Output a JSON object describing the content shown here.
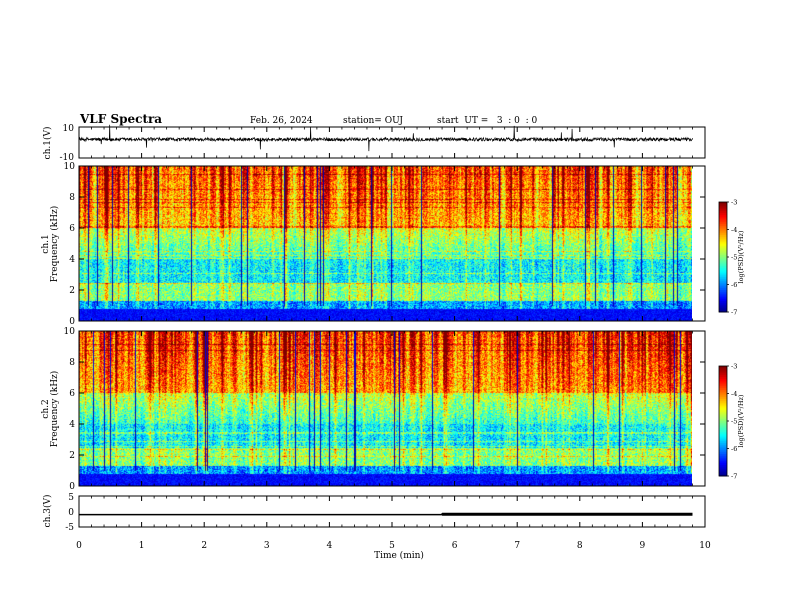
{
  "header": {
    "title": "VLF Spectra",
    "date": "Feb. 26, 2024",
    "station": "station= OUJ",
    "start": "start  UT =   3  : 0  : 0"
  },
  "colorbar": {
    "label": "log(PSD)(V²/Hz)",
    "ticks": [
      "-3",
      "-4",
      "-5",
      "-6",
      "-7"
    ],
    "range": [
      -7,
      -3
    ]
  },
  "chart_data": [
    {
      "type": "line",
      "name": "ch1-waveform",
      "ylabel": "ch.1(V)",
      "ylim": [
        -10,
        10
      ],
      "xlim": [
        0,
        10
      ],
      "yticks": [
        "10",
        "-10"
      ],
      "description_of_trace": "noisy baseline near +2 V with sparse spikes"
    },
    {
      "type": "heatmap",
      "name": "ch1-spectrogram",
      "ylabel": "ch.1\nFrequency (kHz)",
      "ylim": [
        0,
        10
      ],
      "xlim": [
        0,
        10
      ],
      "yticks": [
        "0",
        "2",
        "4",
        "6",
        "8",
        "10"
      ]
    },
    {
      "type": "heatmap",
      "name": "ch2-spectrogram",
      "ylabel": "ch.2\nFrequency (kHz)",
      "ylim": [
        0,
        10
      ],
      "xlim": [
        0,
        10
      ],
      "yticks": [
        "0",
        "2",
        "4",
        "6",
        "8",
        "10"
      ]
    },
    {
      "type": "line",
      "name": "ch3-trace",
      "ylabel": "ch.3(V)",
      "ylim": [
        -5,
        5
      ],
      "xlim": [
        0,
        10
      ],
      "yticks": [
        "5",
        "0",
        "-5"
      ],
      "x": [
        0,
        5.8,
        5.8,
        9.8
      ],
      "y": [
        -1.0,
        -1.0,
        -0.8,
        -0.8
      ]
    }
  ],
  "xaxis": {
    "label": "Time (min)",
    "ticks": [
      "0",
      "1",
      "2",
      "3",
      "4",
      "5",
      "6",
      "7",
      "8",
      "9",
      "10"
    ],
    "data_end": 9.8
  }
}
